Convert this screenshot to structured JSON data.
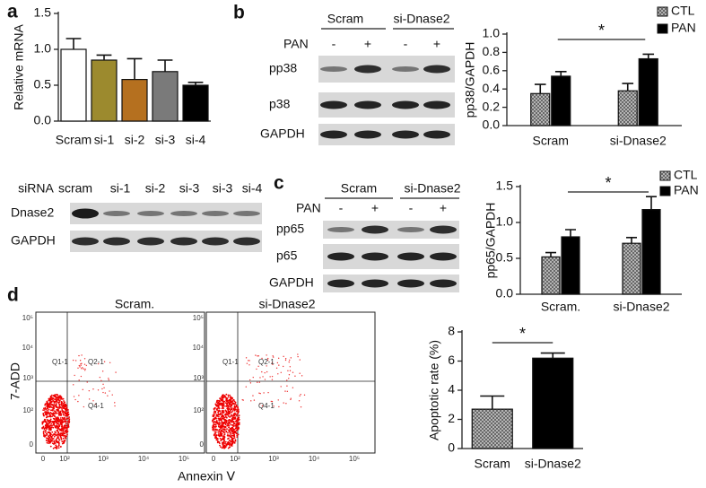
{
  "panel_labels": [
    "a",
    "b",
    "c",
    "d"
  ],
  "chart_data": [
    {
      "type": "bar",
      "y_label": "Relative mRNA",
      "categories": [
        "Scram",
        "si-1",
        "si-2",
        "si-3",
        "si-4"
      ],
      "values": [
        1.0,
        0.85,
        0.58,
        0.69,
        0.5
      ],
      "errors": [
        0.15,
        0.07,
        0.29,
        0.16,
        0.04
      ],
      "colors": [
        "#ffffff",
        "#9c8a2e",
        "#b5701f",
        "#7a7a7a",
        "#000000"
      ],
      "ylim": [
        0,
        1.5
      ],
      "yticks": [
        {
          "value": 0,
          "label": "0.0"
        },
        0.5,
        {
          "value": 1,
          "label": "1.0"
        },
        1.5
      ]
    },
    {
      "type": "bar",
      "y_label": "pp38/GAPDH",
      "categories": [
        "Scram",
        "si-Dnase2"
      ],
      "series": [
        {
          "name": "CTL",
          "color": "#9a9a9a",
          "hatch": true,
          "values": [
            0.35,
            0.38
          ],
          "errors": [
            0.1,
            0.08
          ]
        },
        {
          "name": "PAN",
          "color": "#000000",
          "values": [
            0.54,
            0.73
          ],
          "errors": [
            0.05,
            0.05
          ]
        }
      ],
      "ylim": [
        0,
        1
      ],
      "yticks": [
        {
          "value": 0,
          "label": "0.0"
        },
        0.2,
        0.4,
        0.6,
        0.8,
        {
          "value": 1,
          "label": "1.0"
        }
      ],
      "annotation": "*"
    },
    {
      "type": "bar",
      "y_label": "pp65/GAPDH",
      "categories": [
        "Scram.",
        "si-Dnase2"
      ],
      "series": [
        {
          "name": "CTL",
          "color": "#9a9a9a",
          "hatch": true,
          "values": [
            0.52,
            0.71
          ],
          "errors": [
            0.06,
            0.08
          ]
        },
        {
          "name": "PAN",
          "color": "#000000",
          "values": [
            0.8,
            1.18
          ],
          "errors": [
            0.1,
            0.18
          ]
        }
      ],
      "ylim": [
        0,
        1.5
      ],
      "yticks": [
        {
          "value": 0,
          "label": "0.0"
        },
        0.5,
        {
          "value": 1,
          "label": "1.0"
        },
        1.5
      ],
      "annotation": "*"
    },
    {
      "type": "bar",
      "y_label": "Apoptotic rate (%)",
      "categories": [
        "Scram",
        "si-Dnase2"
      ],
      "values": [
        2.7,
        6.2
      ],
      "errors": [
        0.9,
        0.35
      ],
      "colors": [
        "#9a9a9a",
        "#000000"
      ],
      "hatch": [
        true,
        false
      ],
      "ylim": [
        0,
        8
      ],
      "yticks": [
        0,
        2,
        4,
        6,
        8
      ],
      "annotation": "*"
    }
  ],
  "blot_a": {
    "header": [
      "siRNA",
      "scram",
      "si-1",
      "si-2",
      "si-3",
      "si-3",
      "si-4"
    ],
    "rows": [
      "Dnase2",
      "GAPDH"
    ]
  },
  "blot_b": {
    "groups": [
      "Scram",
      "si-Dnase2"
    ],
    "treatment": "PAN",
    "signs": [
      "-",
      "+",
      "-",
      "+"
    ],
    "rows": [
      "pp38",
      "p38",
      "GAPDH"
    ]
  },
  "blot_c": {
    "groups": [
      "Scram",
      "si-Dnase2"
    ],
    "treatment": "PAN",
    "signs": [
      "-",
      "+",
      "-",
      "+"
    ],
    "rows": [
      "pp65",
      "p65",
      "GAPDH"
    ]
  },
  "flow": {
    "titles": [
      "Scram.",
      "si-Dnase2"
    ],
    "y_label": "7-ADD",
    "x_label": "Annexin Ⅴ",
    "quadrants": [
      "Q1-1",
      "Q2-1",
      "Q4-1"
    ],
    "xticks": [
      "0",
      "10²",
      "10³",
      "10⁴",
      "10⁵"
    ],
    "yticks": [
      "10⁵",
      "10⁴",
      "10³",
      "10²",
      "0"
    ]
  }
}
